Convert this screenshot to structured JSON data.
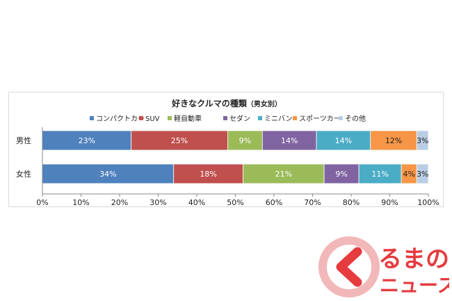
{
  "chart_data": {
    "type": "bar",
    "orientation": "horizontal",
    "stacked": "percent",
    "title": "好きなクルマの種類",
    "title_suffix": "（男女別）",
    "categories": [
      "男性",
      "女性"
    ],
    "series": [
      {
        "name": "コンパクトカー",
        "values": [
          23,
          34
        ],
        "labels": [
          "23%",
          "34%"
        ],
        "color": "#4f81bd"
      },
      {
        "name": "SUV",
        "values": [
          25,
          18
        ],
        "labels": [
          "25%",
          "18%"
        ],
        "color": "#c0504d"
      },
      {
        "name": "軽自動車",
        "values": [
          9,
          21
        ],
        "labels": [
          "9%",
          "21%"
        ],
        "color": "#9bbb59"
      },
      {
        "name": "セダン",
        "values": [
          14,
          9
        ],
        "labels": [
          "14%",
          "9%"
        ],
        "color": "#8064a2"
      },
      {
        "name": "ミニバン",
        "values": [
          14,
          11
        ],
        "labels": [
          "14%",
          "11%"
        ],
        "color": "#4bacc6"
      },
      {
        "name": "スポーツカー",
        "values": [
          12,
          4
        ],
        "labels": [
          "12%",
          "4%"
        ],
        "color": "#f79646"
      },
      {
        "name": "その他",
        "values": [
          3,
          3
        ],
        "labels": [
          "3%",
          "3%"
        ],
        "color": "#b9cde5"
      }
    ],
    "xlim": [
      0,
      100
    ],
    "xticks": [
      "0%",
      "10%",
      "20%",
      "30%",
      "40%",
      "50%",
      "60%",
      "70%",
      "80%",
      "90%",
      "100%"
    ],
    "legend_position": "top",
    "grid": false
  },
  "logo": {
    "line1": "るまの",
    "line2": "ニュース",
    "color": "#e63b3f"
  }
}
